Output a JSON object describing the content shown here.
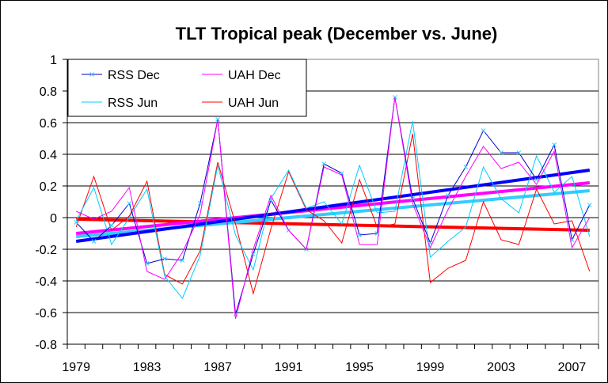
{
  "chart_data": {
    "type": "line",
    "title": "TLT Tropical peak (December vs. June)",
    "xlabel": "",
    "ylabel": "",
    "ylim": [
      -0.8,
      1.0
    ],
    "yticks": [
      "1",
      "0.8",
      "0.6",
      "0.4",
      "0.2",
      "0",
      "-0.2",
      "-0.4",
      "-0.6",
      "-0.8"
    ],
    "ytick_values": [
      1,
      0.8,
      0.6,
      0.4,
      0.2,
      0,
      -0.2,
      -0.4,
      -0.6,
      -0.8
    ],
    "xlim": [
      1979,
      2008
    ],
    "xtick_labels": [
      "1979",
      "1983",
      "1987",
      "1991",
      "1995",
      "1999",
      "2003",
      "2007"
    ],
    "x": [
      1979,
      1980,
      1981,
      1982,
      1983,
      1984,
      1985,
      1986,
      1987,
      1988,
      1989,
      1990,
      1991,
      1992,
      1993,
      1994,
      1995,
      1996,
      1997,
      1998,
      1999,
      2000,
      2001,
      2002,
      2003,
      2004,
      2005,
      2006,
      2007,
      2008
    ],
    "grid": "horizontal",
    "legend_position": "top-left",
    "series": [
      {
        "name": "RSS Dec",
        "color": "#0000cc",
        "marker": "x",
        "marker_color": "#33ccff",
        "values": [
          -0.03,
          -0.15,
          -0.05,
          0.09,
          -0.29,
          -0.26,
          -0.27,
          0.09,
          0.62,
          -0.61,
          -0.23,
          0.11,
          -0.08,
          -0.2,
          0.34,
          0.28,
          -0.11,
          -0.1,
          0.76,
          0.12,
          -0.16,
          0.14,
          0.32,
          0.55,
          0.41,
          0.41,
          0.24,
          0.46,
          -0.14,
          0.08
        ],
        "trend": [
          -0.15,
          0.3
        ],
        "trend_color": "#0000ff"
      },
      {
        "name": "UAH Dec",
        "color": "#ff00ff",
        "marker": "none",
        "values": [
          0.04,
          -0.01,
          0.04,
          0.19,
          -0.34,
          -0.39,
          -0.22,
          0.02,
          0.62,
          -0.64,
          -0.2,
          0.14,
          -0.08,
          -0.2,
          0.32,
          0.27,
          -0.17,
          -0.17,
          0.76,
          0.09,
          -0.19,
          0.05,
          0.26,
          0.45,
          0.31,
          0.35,
          0.21,
          0.42,
          -0.19,
          0.0
        ],
        "trend": [
          -0.1,
          0.22
        ],
        "trend_color": "#ff00ff"
      },
      {
        "name": "RSS Jun",
        "color": "#00ccff",
        "marker": "none",
        "values": [
          -0.02,
          0.19,
          -0.17,
          0.0,
          0.18,
          -0.37,
          -0.51,
          -0.24,
          0.33,
          -0.11,
          -0.33,
          0.12,
          0.3,
          0.06,
          0.1,
          -0.04,
          0.33,
          0.03,
          0.04,
          0.61,
          -0.25,
          -0.15,
          -0.06,
          0.32,
          0.12,
          0.03,
          0.39,
          0.16,
          0.26,
          -0.12
        ],
        "trend": [
          -0.12,
          0.17
        ],
        "trend_color": "#33ccff"
      },
      {
        "name": "UAH Jun",
        "color": "#ff0000",
        "marker": "none",
        "values": [
          -0.06,
          0.26,
          -0.08,
          0.01,
          0.23,
          -0.36,
          -0.42,
          -0.21,
          0.35,
          -0.04,
          -0.48,
          -0.07,
          0.29,
          0.05,
          -0.02,
          -0.16,
          0.24,
          -0.06,
          -0.04,
          0.53,
          -0.41,
          -0.32,
          -0.27,
          0.1,
          -0.14,
          -0.17,
          0.18,
          -0.04,
          -0.02,
          -0.34
        ],
        "trend": [
          -0.01,
          -0.08
        ],
        "trend_color": "#ff0000"
      }
    ],
    "legend_order": [
      "RSS Dec",
      "UAH Dec",
      "RSS Jun",
      "UAH Jun"
    ]
  }
}
